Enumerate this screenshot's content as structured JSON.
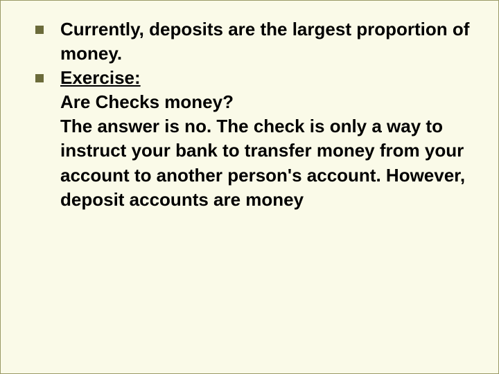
{
  "slide": {
    "background_color": "#fafae8",
    "border_color": "#999966",
    "bullet_color": "#6b6b3a",
    "text_color": "#000000",
    "font_size": 26,
    "font_weight": "bold",
    "bullets": [
      {
        "text": "Currently, deposits are the largest proportion of money."
      },
      {
        "label": "Exercise:",
        "line1": "Are Checks money?",
        "line2": "The answer is no. The check is only a way to instruct your bank to transfer money from your account to another person's account. However, deposit accounts are money"
      }
    ]
  }
}
